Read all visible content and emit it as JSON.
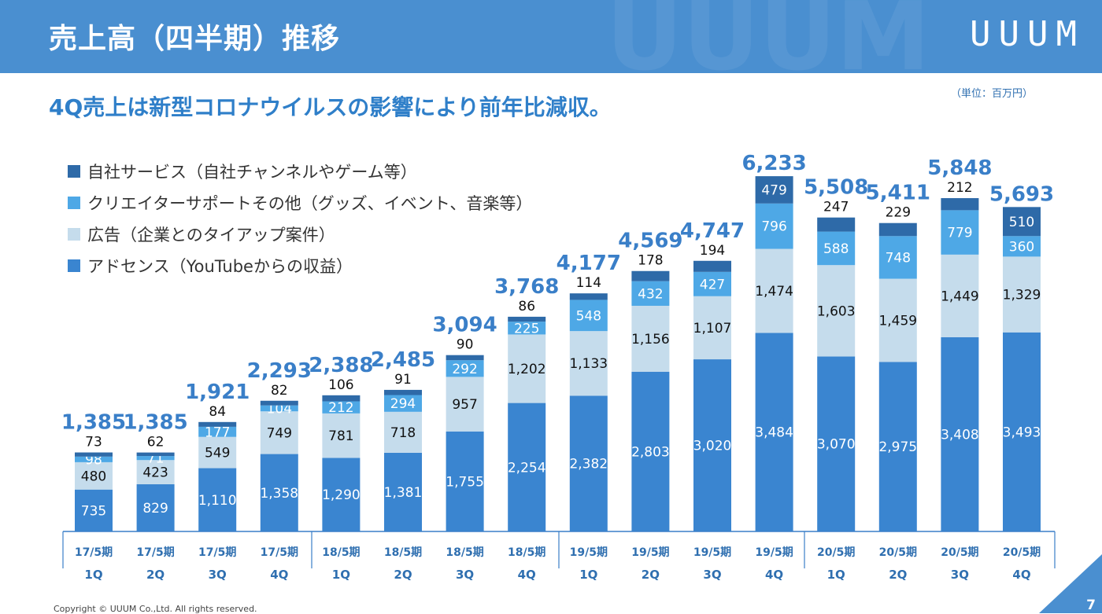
{
  "header": {
    "title": "売上高（四半期）推移",
    "logo": "UUUM"
  },
  "subtitle": "4Q売上は新型コロナウイルスの影響により前年比減収。",
  "unit_note": "（単位：百万円）",
  "footer": {
    "copyright": "Copyright © UUUM Co.,Ltd. All rights reserved.",
    "page": "7"
  },
  "colors": {
    "header": "#4a8fd0",
    "adsense": "#3a85d0",
    "ads": "#c5dcec",
    "creator_support": "#4ea8e6",
    "own_service": "#2e6aa8",
    "total_label": "#3a7fc8"
  },
  "chart_data": {
    "type": "bar",
    "stacked": true,
    "title": "売上高（四半期）推移",
    "ylabel": "百万円",
    "ylim": [
      0,
      6500
    ],
    "grid": false,
    "legend_position": "top-left",
    "categories": [
      "17/5期 1Q",
      "17/5期 2Q",
      "17/5期 3Q",
      "17/5期 4Q",
      "18/5期 1Q",
      "18/5期 2Q",
      "18/5期 3Q",
      "18/5期 4Q",
      "19/5期 1Q",
      "19/5期 2Q",
      "19/5期 3Q",
      "19/5期 4Q",
      "20/5期 1Q",
      "20/5期 2Q",
      "20/5期 3Q",
      "20/5期 4Q"
    ],
    "period_labels": [
      "17/5期",
      "17/5期",
      "17/5期",
      "17/5期",
      "18/5期",
      "18/5期",
      "18/5期",
      "18/5期",
      "19/5期",
      "19/5期",
      "19/5期",
      "19/5期",
      "20/5期",
      "20/5期",
      "20/5期",
      "20/5期"
    ],
    "quarter_labels": [
      "1Q",
      "2Q",
      "3Q",
      "4Q",
      "1Q",
      "2Q",
      "3Q",
      "4Q",
      "1Q",
      "2Q",
      "3Q",
      "4Q",
      "1Q",
      "2Q",
      "3Q",
      "4Q"
    ],
    "series": [
      {
        "name": "アドセンス（YouTubeからの収益）",
        "key": "adsense",
        "values": [
          735,
          829,
          1110,
          1358,
          1290,
          1381,
          1755,
          2254,
          2382,
          2803,
          3020,
          3484,
          3070,
          2975,
          3408,
          3493
        ]
      },
      {
        "name": "広告（企業とのタイアップ案件）",
        "key": "ads",
        "values": [
          480,
          423,
          549,
          749,
          781,
          718,
          957,
          1202,
          1133,
          1156,
          1107,
          1474,
          1603,
          1459,
          1449,
          1329
        ]
      },
      {
        "name": "クリエイターサポートその他（グッズ、イベント、音楽等）",
        "key": "creator_support",
        "values": [
          98,
          71,
          177,
          104,
          212,
          294,
          292,
          225,
          548,
          432,
          427,
          796,
          588,
          748,
          779,
          360
        ]
      },
      {
        "name": "自社サービス（自社チャンネルやゲーム等）",
        "key": "own_service",
        "values": [
          73,
          62,
          84,
          82,
          106,
          91,
          90,
          86,
          114,
          178,
          194,
          479,
          247,
          229,
          212,
          510
        ]
      }
    ],
    "totals": [
      1385,
      1385,
      1921,
      2293,
      2388,
      2485,
      3094,
      3768,
      4177,
      4569,
      4747,
      6233,
      5508,
      5411,
      5848,
      5693
    ],
    "legend": [
      {
        "name": "自社サービス（自社チャンネルやゲーム等）",
        "color": "#2e6aa8"
      },
      {
        "name": "クリエイターサポートその他（グッズ、イベント、音楽等）",
        "color": "#4ea8e6"
      },
      {
        "name": "広告（企業とのタイアップ案件）",
        "color": "#c5dcec"
      },
      {
        "name": "アドセンス（YouTubeからの収益）",
        "color": "#3a85d0"
      }
    ]
  }
}
